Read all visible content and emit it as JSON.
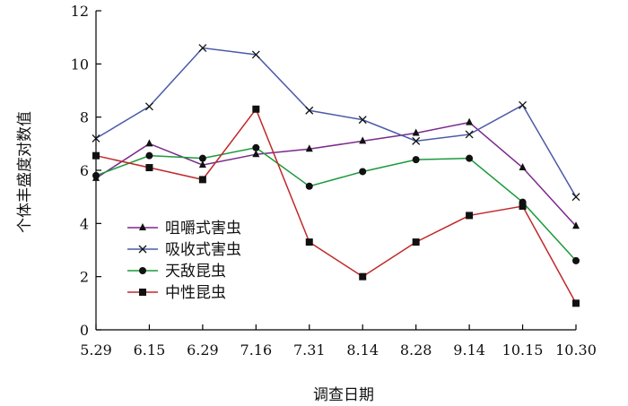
{
  "chart_data": {
    "type": "line",
    "title": "",
    "xlabel": "调查日期",
    "ylabel": "个体丰盛度对数值",
    "ylim": [
      0,
      12
    ],
    "yticks": [
      0,
      2,
      4,
      6,
      8,
      10,
      12
    ],
    "categories": [
      "5.29",
      "6.15",
      "6.29",
      "7.16",
      "7.31",
      "8.14",
      "8.28",
      "9.14",
      "10.15",
      "10.30"
    ],
    "grid": false,
    "legend_position": "lower-left",
    "series": [
      {
        "name": "咀嚼式害虫",
        "marker": "triangle",
        "color": "#7a2a8c",
        "values": [
          5.7,
          7.0,
          6.2,
          6.6,
          6.8,
          7.1,
          7.4,
          7.8,
          6.1,
          3.9
        ]
      },
      {
        "name": "吸收式害虫",
        "marker": "x",
        "color": "#4a5aa8",
        "values": [
          7.2,
          8.4,
          10.6,
          10.35,
          8.25,
          7.9,
          7.1,
          7.35,
          8.45,
          5.0
        ]
      },
      {
        "name": "天敌昆虫",
        "marker": "circle",
        "color": "#1a9a3a",
        "values": [
          5.8,
          6.55,
          6.45,
          6.85,
          5.4,
          5.95,
          6.4,
          6.45,
          4.8,
          2.6
        ]
      },
      {
        "name": "中性昆虫",
        "marker": "square",
        "color": "#c0282a",
        "values": [
          6.55,
          6.1,
          5.65,
          8.3,
          3.3,
          2.0,
          3.3,
          4.3,
          4.65,
          1.0
        ]
      }
    ]
  }
}
